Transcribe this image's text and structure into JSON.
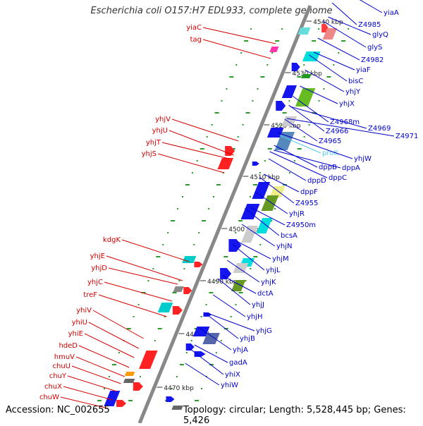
{
  "title": "Escherichia coli O157:H7 EDL933, complete genome",
  "footer": {
    "accession": "Accession: NC_002655",
    "topology": "Topology: circular; Length: 5,528,445 bp; Genes: 5,426"
  },
  "colors": {
    "left_label": "#d40000",
    "right_label": "#0000cc",
    "highlight_label": "#55ccee",
    "backbone": "#888888",
    "tick_minor": "#2a9a2a"
  },
  "scale_marks": [
    "4540 kbp",
    "4530 kbp",
    "4520 kbp",
    "4510 kbp",
    "4500 kbp",
    "4490 kbp",
    "4480 kbp",
    "4470 kbp"
  ],
  "left_genes": [
    "yiaC",
    "tag",
    "yhjV",
    "yhjU",
    "yhjT",
    "yhjS",
    "kdgK",
    "yhjE",
    "yhjD",
    "yhjC",
    "treF",
    "yhiV",
    "yhiU",
    "yhiE",
    "hdeD",
    "hmuV",
    "chuU",
    "chuY",
    "chuX",
    "chuW"
  ],
  "right_genes": [
    "yiaA",
    "Z4985",
    "glyQ",
    "glyS",
    "Z4982",
    "yiaF",
    "bisC",
    "yhjY",
    "yhjX",
    "Z4968m",
    "Z4969",
    "Z4971",
    "Z4966",
    "Z4965",
    "proK",
    "yhjW",
    "dppB",
    "dppA",
    "dppC",
    "dppD",
    "dppF",
    "Z4955",
    "yhjR",
    "Z4950m",
    "bcsA",
    "yhjN",
    "yhjM",
    "yhjL",
    "yhjK",
    "dctA",
    "yhjJ",
    "yhjH",
    "yhjG",
    "yhjB",
    "yhjA",
    "gadA",
    "yhiX",
    "yhiW"
  ],
  "highlighted_gene": "proK"
}
